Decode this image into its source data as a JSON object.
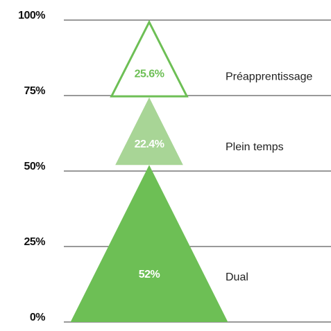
{
  "chart_data": {
    "type": "stacked_triangle",
    "categories": [
      "Dual",
      "Plein temps",
      "Préapprentissage"
    ],
    "values": [
      52,
      22.4,
      25.6
    ],
    "value_labels": [
      "52%",
      "22.4%",
      "25.6%"
    ],
    "colors": [
      "#6dbf55",
      "#a8d596",
      "#6dbf55"
    ],
    "styles": [
      "filled",
      "filled",
      "outline"
    ],
    "ylim": [
      0,
      100
    ],
    "yticks": [
      {
        "value": 0,
        "label": "0%"
      },
      {
        "value": 25,
        "label": "25%"
      },
      {
        "value": 50,
        "label": "50%"
      },
      {
        "value": 75,
        "label": "75%"
      },
      {
        "value": 100,
        "label": "100%"
      }
    ],
    "grid": true
  }
}
